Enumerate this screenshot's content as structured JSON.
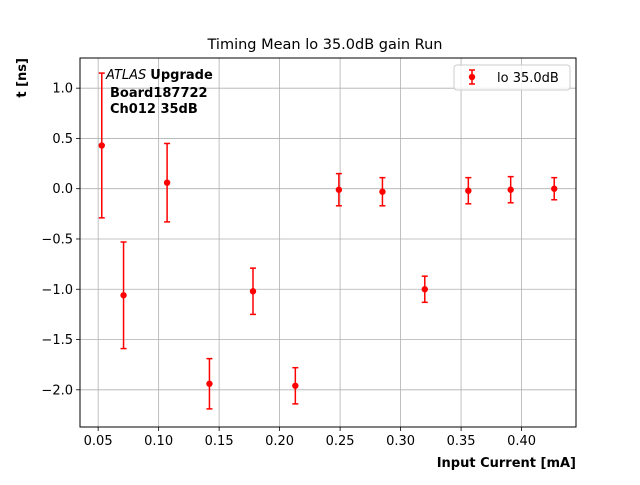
{
  "chart_data": {
    "type": "scatter",
    "title": "Timing Mean lo 35.0dB gain Run",
    "xlabel": "Input Current [mA]",
    "ylabel": "t [ns]",
    "xlim": [
      0.035,
      0.445
    ],
    "ylim": [
      -2.37,
      1.3
    ],
    "xticks": [
      0.05,
      0.1,
      0.15,
      0.2,
      0.25,
      0.3,
      0.35,
      0.4
    ],
    "xtick_labels": [
      "0.05",
      "0.10",
      "0.15",
      "0.20",
      "0.25",
      "0.30",
      "0.35",
      "0.40"
    ],
    "yticks": [
      1.0,
      0.5,
      0.0,
      -0.5,
      -1.0,
      -1.5,
      -2.0
    ],
    "ytick_labels": [
      "1.0",
      "0.5",
      "0.0",
      "−0.5",
      "−1.0",
      "−1.5",
      "−2.0"
    ],
    "grid": true,
    "legend_position": "top-right",
    "series": [
      {
        "name": "lo 35.0dB",
        "color": "#ff0000",
        "marker": "circle",
        "x": [
          0.053,
          0.071,
          0.107,
          0.142,
          0.178,
          0.213,
          0.249,
          0.285,
          0.32,
          0.356,
          0.391,
          0.427
        ],
        "y": [
          0.43,
          -1.06,
          0.06,
          -1.94,
          -1.02,
          -1.96,
          -0.01,
          -0.03,
          -1.0,
          -0.02,
          -0.01,
          0.0
        ],
        "yerr_low": [
          0.72,
          0.53,
          0.39,
          0.25,
          0.23,
          0.18,
          0.16,
          0.14,
          0.13,
          0.13,
          0.13,
          0.11
        ],
        "yerr_high": [
          0.72,
          0.53,
          0.39,
          0.25,
          0.23,
          0.18,
          0.16,
          0.14,
          0.13,
          0.13,
          0.13,
          0.11
        ]
      }
    ],
    "annotations": {
      "experiment": "ATLAS",
      "tag": "Upgrade",
      "line2": "Board187722",
      "line3": "Ch012 35dB"
    }
  }
}
